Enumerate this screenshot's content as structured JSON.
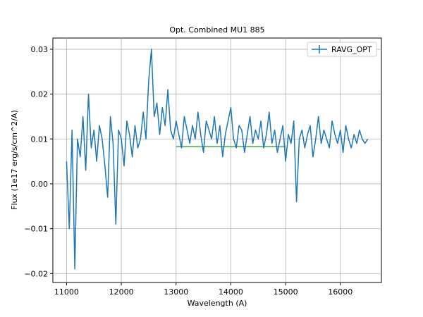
{
  "chart_data": {
    "type": "line",
    "title": "Opt. Combined MU1 885",
    "xlabel": "Wavelength (A)",
    "ylabel": "Flux (1e17 erg/s/cm^2/A)",
    "xlim": [
      10750,
      16750
    ],
    "ylim": [
      -0.022,
      0.0325
    ],
    "xticks": [
      11000,
      12000,
      13000,
      14000,
      15000,
      16000
    ],
    "yticks": [
      -0.02,
      -0.01,
      0.0,
      0.01,
      0.02,
      0.03
    ],
    "xtick_labels": [
      "11000",
      "12000",
      "13000",
      "14000",
      "15000",
      "16000"
    ],
    "ytick_labels": [
      "−0.02",
      "−0.01",
      "0.00",
      "0.01",
      "0.02",
      "0.03"
    ],
    "grid": true,
    "legend_position": "upper-right",
    "series": [
      {
        "name": "RAVG_OPT",
        "color": "#1f77b4",
        "x": [
          11000,
          11050,
          11100,
          11150,
          11200,
          11250,
          11300,
          11350,
          11400,
          11450,
          11500,
          11550,
          11600,
          11650,
          11700,
          11750,
          11800,
          11850,
          11900,
          11950,
          12000,
          12050,
          12100,
          12150,
          12200,
          12250,
          12300,
          12350,
          12400,
          12450,
          12500,
          12550,
          12600,
          12650,
          12700,
          12750,
          12800,
          12850,
          12900,
          12950,
          13000,
          13050,
          13100,
          13150,
          13200,
          13250,
          13300,
          13350,
          13400,
          13450,
          13500,
          13550,
          13600,
          13650,
          13700,
          13750,
          13800,
          13850,
          13900,
          13950,
          14000,
          14050,
          14100,
          14150,
          14200,
          14250,
          14300,
          14350,
          14400,
          14450,
          14500,
          14550,
          14600,
          14650,
          14700,
          14750,
          14800,
          14850,
          14900,
          14950,
          15000,
          15050,
          15100,
          15150,
          15200,
          15250,
          15300,
          15350,
          15400,
          15450,
          15500,
          15550,
          15600,
          15650,
          15700,
          15750,
          15800,
          15850,
          15900,
          15950,
          16000,
          16050,
          16100,
          16150,
          16200,
          16250,
          16300,
          16350,
          16400,
          16450,
          16500
        ],
        "y": [
          0.005,
          -0.01,
          0.012,
          -0.019,
          0.01,
          0.006,
          0.015,
          0.003,
          0.02,
          0.008,
          0.012,
          0.005,
          0.013,
          0.01,
          0.004,
          -0.003,
          0.015,
          0.009,
          -0.009,
          0.012,
          0.01,
          0.004,
          0.014,
          0.011,
          0.006,
          0.013,
          0.008,
          0.01,
          0.016,
          0.01,
          0.023,
          0.03,
          0.015,
          0.018,
          0.011,
          0.017,
          0.013,
          0.021,
          0.012,
          0.01,
          0.014,
          0.011,
          0.008,
          0.015,
          0.012,
          0.009,
          0.013,
          0.01,
          0.016,
          0.011,
          0.007,
          0.014,
          0.012,
          0.01,
          0.015,
          0.009,
          0.013,
          0.006,
          0.011,
          0.014,
          0.017,
          0.01,
          0.008,
          0.013,
          0.012,
          0.007,
          0.011,
          0.015,
          0.009,
          0.012,
          0.01,
          0.014,
          0.008,
          0.011,
          0.016,
          0.009,
          0.012,
          0.007,
          0.01,
          0.013,
          0.005,
          0.011,
          0.009,
          0.014,
          -0.004,
          0.01,
          0.012,
          0.008,
          0.011,
          0.013,
          0.006,
          0.01,
          0.015,
          0.009,
          0.012,
          0.01,
          0.008,
          0.014,
          0.011,
          0.009,
          0.012,
          0.007,
          0.013,
          0.01,
          0.008,
          0.011,
          0.009,
          0.012,
          0.01,
          0.009,
          0.01
        ]
      }
    ],
    "overlay_line": {
      "color": "#2ca02c",
      "x": [
        13000,
        15000
      ],
      "y": [
        0.0083,
        0.0083
      ]
    }
  }
}
